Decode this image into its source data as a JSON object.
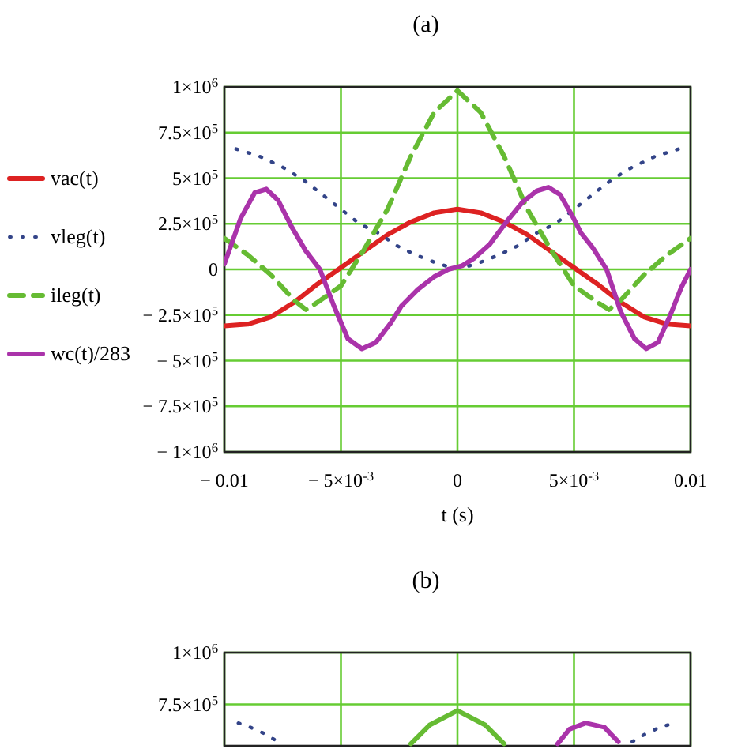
{
  "chart_data": [
    {
      "type": "line",
      "title": "(a)",
      "xlabel": "t (s)",
      "xlim": [
        -0.01,
        0.01
      ],
      "ylim": [
        -1000000,
        1000000
      ],
      "xticks": [
        {
          "value": -0.01,
          "label": "− 0.01"
        },
        {
          "value": -0.005,
          "label": "− 5×10$^{-3}$"
        },
        0,
        {
          "value": 0.005,
          "label": "5×10$^{-3}$"
        },
        0.01
      ],
      "yticks": [
        {
          "value": -1000000,
          "label": "− 1×10$^{6}$"
        },
        {
          "value": -750000,
          "label": "− 7.5×10$^{5}$"
        },
        {
          "value": -500000,
          "label": "− 5×10$^{5}$"
        },
        {
          "value": -250000,
          "label": "− 2.5×10$^{5}$"
        },
        0,
        {
          "value": 250000,
          "label": "2.5×10$^{5}$"
        },
        {
          "value": 500000,
          "label": "5×10$^{5}$"
        },
        {
          "value": 750000,
          "label": "7.5×10$^{5}$"
        },
        {
          "value": 1000000,
          "label": "1×10$^{6}$"
        }
      ],
      "grid": true,
      "legend": "left",
      "series": [
        {
          "name": "vac(t)",
          "color": "#dd2222",
          "line_style": "solid",
          "x": [
            -0.01,
            -0.009,
            -0.008,
            -0.007,
            -0.006,
            -0.005,
            -0.004,
            -0.003,
            -0.002,
            -0.001,
            0,
            0.001,
            0.002,
            0.003,
            0.004,
            0.005,
            0.006,
            0.007,
            0.008,
            0.009,
            0.01
          ],
          "values": [
            -310000,
            -300000,
            -260000,
            -180000,
            -80000,
            10000,
            100000,
            190000,
            260000,
            310000,
            330000,
            310000,
            260000,
            190000,
            100000,
            10000,
            -80000,
            -180000,
            -260000,
            -300000,
            -310000
          ]
        },
        {
          "name": "vleg(t)",
          "color": "#334488",
          "line_style": "dotted",
          "x": [
            -0.0095,
            -0.0085,
            -0.0075,
            -0.0066,
            -0.0058,
            -0.005,
            -0.0042,
            -0.0034,
            -0.0026,
            -0.0018,
            -0.001,
            -0.0004,
            0.0004,
            0.001,
            0.0018,
            0.0026,
            0.0034,
            0.0042,
            0.005,
            0.0058,
            0.0066,
            0.0075,
            0.0085,
            0.0095
          ],
          "values": [
            660000,
            620000,
            560000,
            490000,
            410000,
            330000,
            250000,
            200000,
            130000,
            80000,
            40000,
            15000,
            15000,
            40000,
            80000,
            130000,
            200000,
            250000,
            330000,
            410000,
            490000,
            560000,
            620000,
            660000
          ]
        },
        {
          "name": "ileg(t)",
          "color": "#66bb33",
          "line_style": "dashed",
          "x": [
            -0.01,
            -0.009,
            -0.008,
            -0.007,
            -0.0065,
            -0.006,
            -0.005,
            -0.004,
            -0.003,
            -0.002,
            -0.001,
            0,
            0.001,
            0.002,
            0.003,
            0.004,
            0.005,
            0.006,
            0.0065,
            0.007,
            0.008,
            0.009,
            0.01
          ],
          "values": [
            170000,
            80000,
            -30000,
            -170000,
            -220000,
            -180000,
            -90000,
            110000,
            330000,
            620000,
            860000,
            980000,
            860000,
            620000,
            330000,
            110000,
            -90000,
            -180000,
            -220000,
            -170000,
            -30000,
            80000,
            170000
          ]
        },
        {
          "name": "wc(t)/283",
          "color": "#aa33aa",
          "line_style": "solid",
          "x": [
            -0.01,
            -0.0093,
            -0.0087,
            -0.0082,
            -0.0077,
            -0.0071,
            -0.0065,
            -0.0059,
            -0.0053,
            -0.0047,
            -0.0041,
            -0.0035,
            -0.0029,
            -0.0024,
            -0.0017,
            -0.001,
            -0.0004,
            0.0002,
            0.0007,
            0.0014,
            0.0021,
            0.0028,
            0.0034,
            0.0039,
            0.0044,
            0.0049,
            0.0053,
            0.0058,
            0.0064,
            0.007,
            0.0076,
            0.0081,
            0.0086,
            0.0091,
            0.0096,
            0.01
          ],
          "values": [
            30000,
            280000,
            420000,
            440000,
            380000,
            230000,
            100000,
            0,
            -200000,
            -380000,
            -435000,
            -400000,
            -300000,
            -200000,
            -110000,
            -40000,
            0,
            20000,
            60000,
            140000,
            260000,
            370000,
            430000,
            450000,
            410000,
            300000,
            200000,
            120000,
            0,
            -230000,
            -380000,
            -435000,
            -400000,
            -260000,
            -100000,
            0
          ]
        }
      ]
    },
    {
      "type": "line",
      "title": "(b)",
      "xlim": [
        -0.01,
        0.01
      ],
      "ylim": [
        550000,
        1000000
      ],
      "tick_labels": "y",
      "xticks": [
        -0.01,
        -0.005,
        0,
        0.005,
        0.01
      ],
      "yticks": [
        {
          "value": 750000,
          "label": "7.5×10$^{5}$"
        },
        {
          "value": 1000000,
          "label": "1×10$^{6}$"
        }
      ],
      "grid": true,
      "legend": false,
      "series": [
        {
          "color": "#334488",
          "line_style": "dotted",
          "x": [
            -0.0094,
            -0.0089,
            -0.0083,
            -0.0077,
            0,
            0.0075,
            0.0081,
            0.0087,
            0.0093
          ],
          "values": [
            660000,
            640000,
            610000,
            570000,
            null,
            570000,
            610000,
            640000,
            660000
          ]
        },
        {
          "color": "#66bb33",
          "line_style": "solid",
          "x": [
            -0.002,
            -0.0012,
            0,
            0.0012,
            0.002
          ],
          "values": [
            560000,
            650000,
            720000,
            650000,
            560000
          ]
        },
        {
          "color": "#aa33aa",
          "line_style": "solid",
          "x": [
            0.0043,
            0.0048,
            0.0055,
            0.0063,
            0.0069
          ],
          "values": [
            560000,
            630000,
            660000,
            640000,
            570000
          ]
        }
      ]
    }
  ]
}
